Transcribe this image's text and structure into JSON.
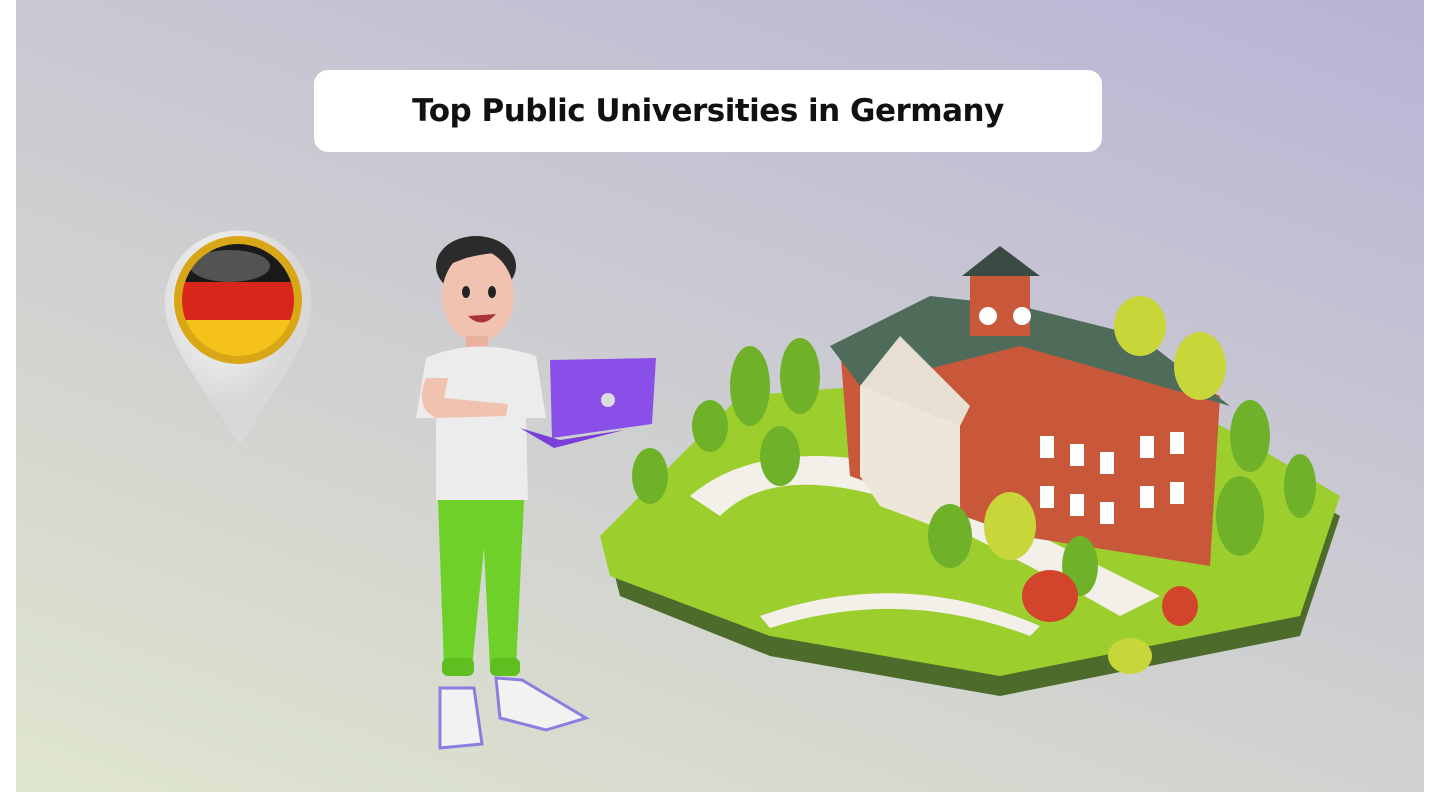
{
  "title": "Top Public Universities in Germany",
  "illustration": {
    "pin": "germany-flag-location-pin",
    "person": "person-holding-laptop",
    "campus": "university-campus-building"
  },
  "colors": {
    "flag_black": "#1a1a1a",
    "flag_red": "#d8261c",
    "flag_gold": "#f4c21a",
    "laptop": "#8a4fe8",
    "pants": "#6fd02a",
    "brick": "#c9583a",
    "roof": "#4f6b5a",
    "grass": "#9ccf2e"
  }
}
